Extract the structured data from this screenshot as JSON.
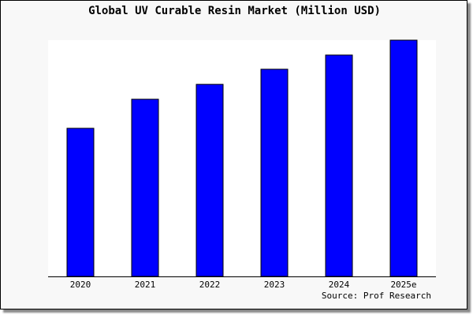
{
  "chart_data": {
    "type": "bar",
    "title": "Global UV Curable Resin Market (Million USD)",
    "categories": [
      "2020",
      "2021",
      "2022",
      "2023",
      "2024",
      "2025e"
    ],
    "values": [
      62.7,
      75.0,
      81.3,
      87.7,
      93.7,
      100
    ],
    "ylim": [
      0,
      100
    ],
    "xlabel": "",
    "ylabel": "",
    "grid": false,
    "bar_color": "#0000ff",
    "source": "Source: Prof Research"
  }
}
